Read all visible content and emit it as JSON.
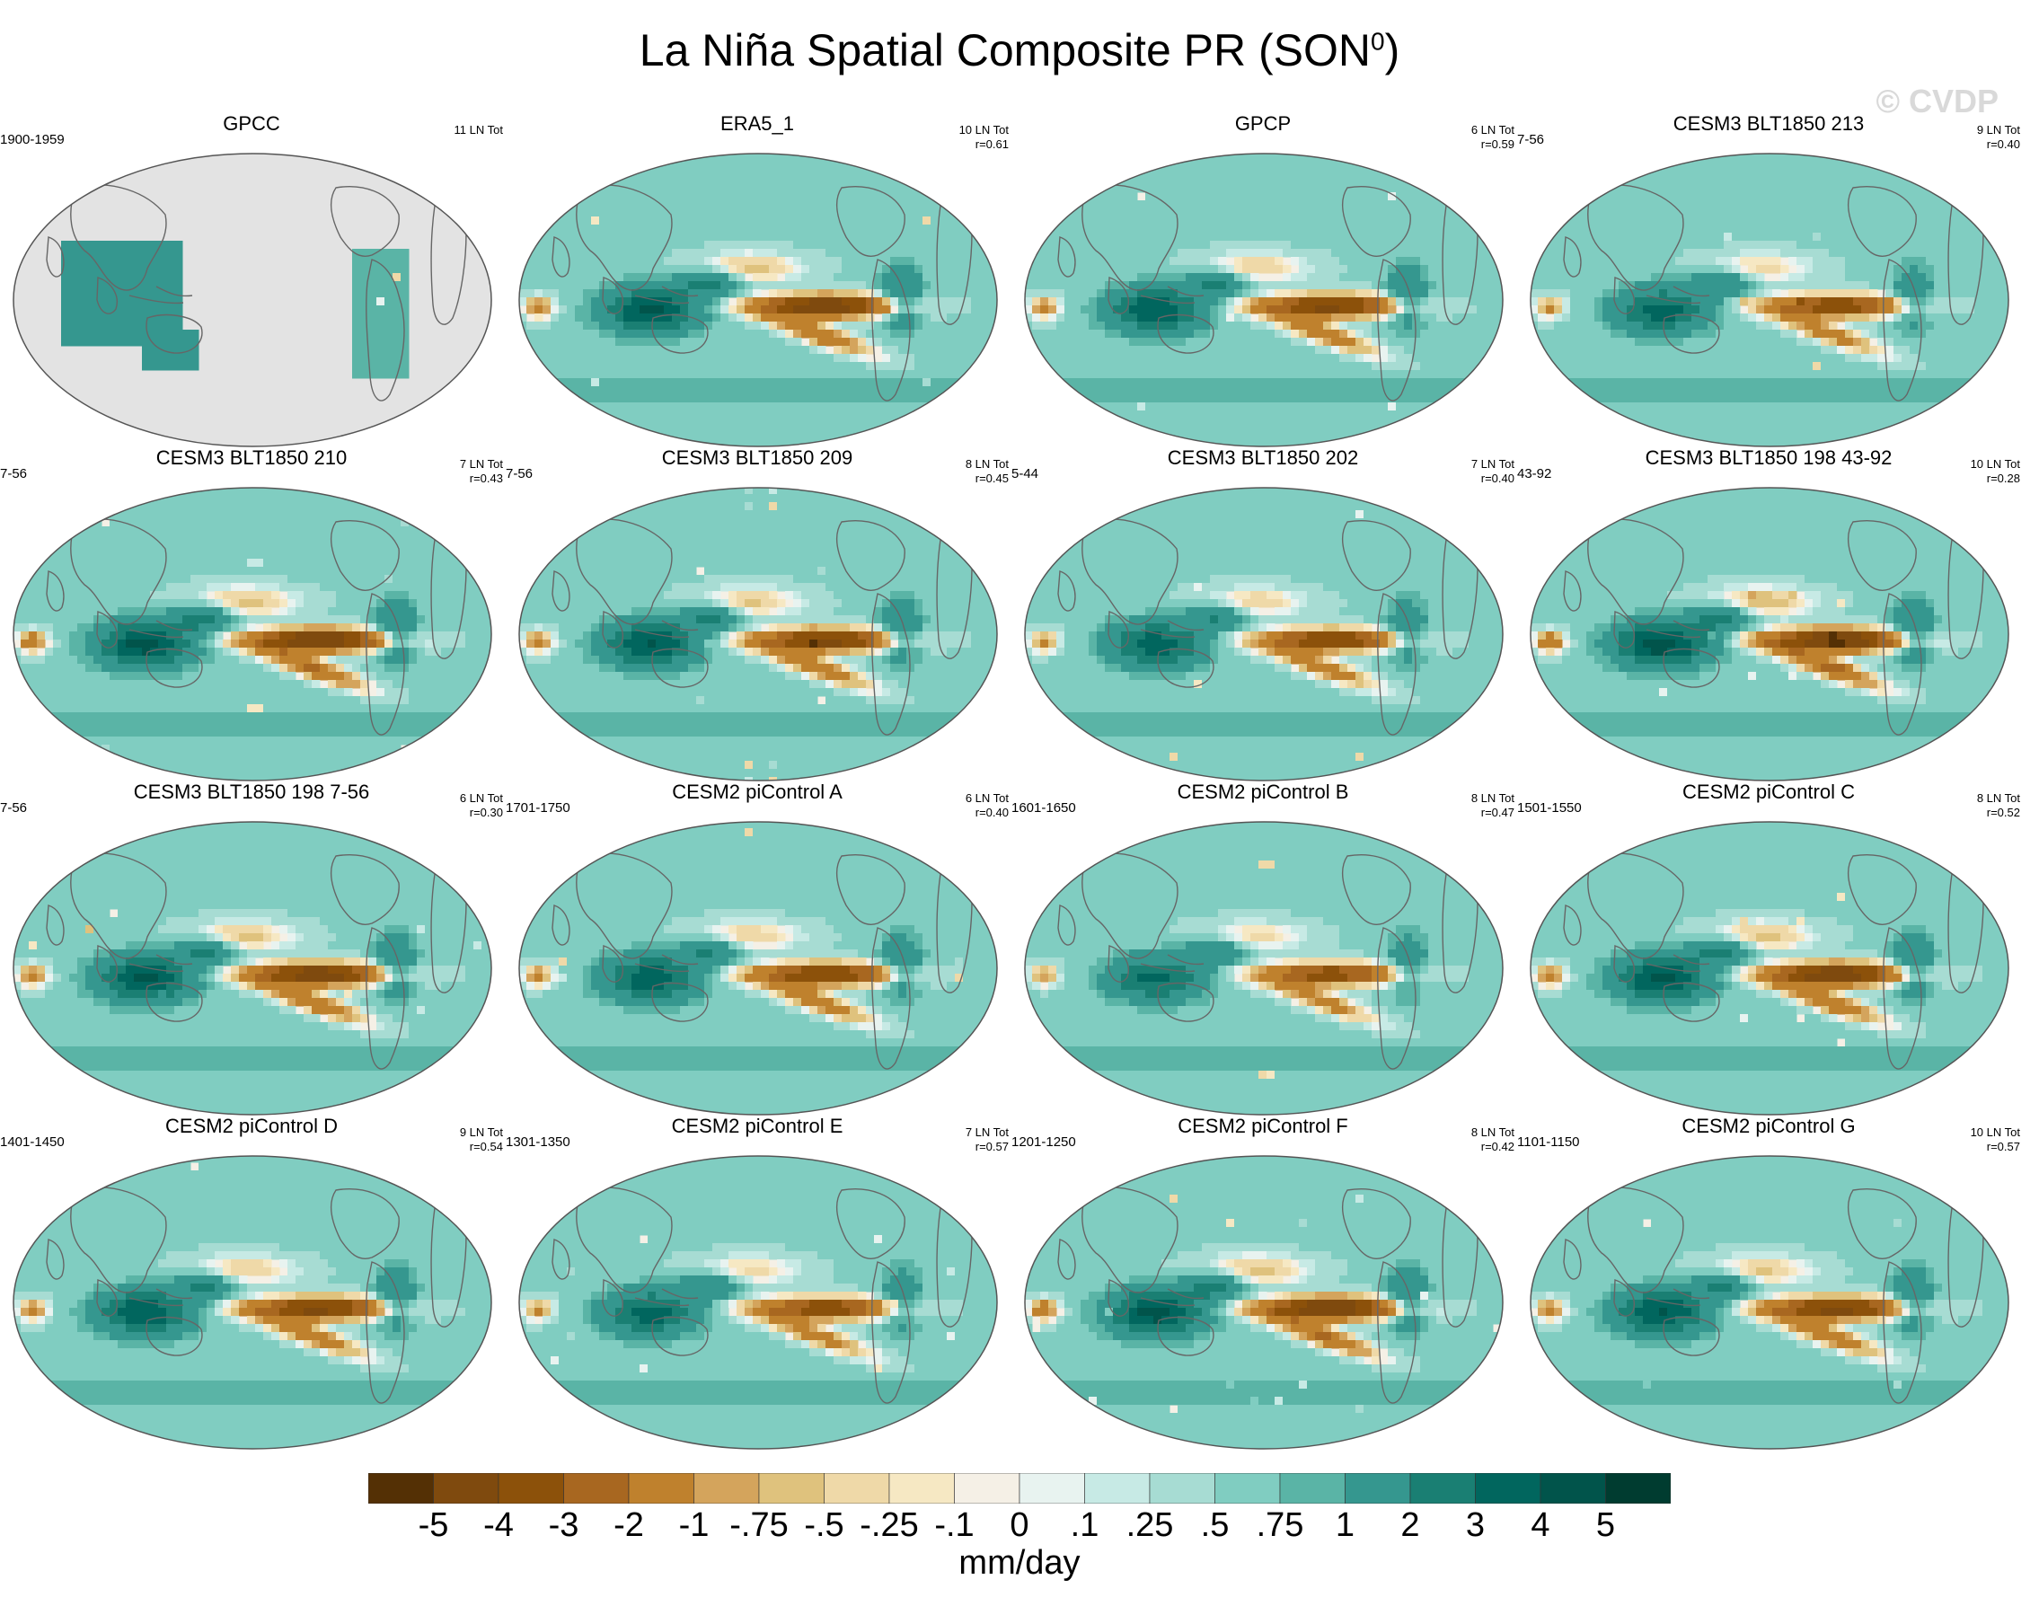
{
  "title": "La Niña Spatial Composite PR (SON",
  "title_superscript": "0",
  "title_suffix": ")",
  "watermark": "© CVDP",
  "chart_data": {
    "type": "heatmap",
    "variable": "PR",
    "season": "SON",
    "units": "mm/day",
    "colorbar": {
      "levels": [
        "-5",
        "-4",
        "-3",
        "-2",
        "-1",
        "-.75",
        "-.5",
        "-.25",
        "-.1",
        "0",
        ".1",
        ".25",
        ".5",
        ".75",
        "1",
        "2",
        "3",
        "4",
        "5"
      ],
      "colors": [
        "#543005",
        "#7f4a0e",
        "#8c510a",
        "#a86720",
        "#bf812d",
        "#d4a45c",
        "#dfc27d",
        "#efd9a8",
        "#f6e8c3",
        "#f5f0e6",
        "#e8f3f0",
        "#c7eae5",
        "#a7dcd3",
        "#80cdc1",
        "#5ab4a6",
        "#35978f",
        "#1a7f73",
        "#01665e",
        "#01544b",
        "#003c30"
      ]
    },
    "panels": [
      {
        "title": "GPCC",
        "period": "1900-1959",
        "events": "11 LN Tot",
        "r": "",
        "land_only": true
      },
      {
        "title": "ERA5_1",
        "period": "",
        "events": "10 LN Tot",
        "r": "r=0.61"
      },
      {
        "title": "GPCP",
        "period": "",
        "events": "6 LN Tot",
        "r": "r=0.59"
      },
      {
        "title": "CESM3 BLT1850 213",
        "period": "7-56",
        "events": "9 LN Tot",
        "r": "r=0.40"
      },
      {
        "title": "CESM3 BLT1850 210",
        "period": "7-56",
        "events": "7 LN Tot",
        "r": "r=0.43"
      },
      {
        "title": "CESM3 BLT1850 209",
        "period": "7-56",
        "events": "8 LN Tot",
        "r": "r=0.45"
      },
      {
        "title": "CESM3 BLT1850 202",
        "period": "5-44",
        "events": "7 LN Tot",
        "r": "r=0.40"
      },
      {
        "title": "CESM3 BLT1850 198 43-92",
        "period": "43-92",
        "events": "10 LN Tot",
        "r": "r=0.28"
      },
      {
        "title": "CESM3 BLT1850 198 7-56",
        "period": "7-56",
        "events": "6 LN Tot",
        "r": "r=0.30"
      },
      {
        "title": "CESM2 piControl A",
        "period": "1701-1750",
        "events": "6 LN Tot",
        "r": "r=0.40"
      },
      {
        "title": "CESM2 piControl B",
        "period": "1601-1650",
        "events": "8 LN Tot",
        "r": "r=0.47"
      },
      {
        "title": "CESM2 piControl C",
        "period": "1501-1550",
        "events": "8 LN Tot",
        "r": "r=0.52"
      },
      {
        "title": "CESM2 piControl D",
        "period": "1401-1450",
        "events": "9 LN Tot",
        "r": "r=0.54"
      },
      {
        "title": "CESM2 piControl E",
        "period": "1301-1350",
        "events": "7 LN Tot",
        "r": "r=0.57"
      },
      {
        "title": "CESM2 piControl F",
        "period": "1201-1250",
        "events": "8 LN Tot",
        "r": "r=0.42"
      },
      {
        "title": "CESM2 piControl G",
        "period": "1101-1150",
        "events": "10 LN Tot",
        "r": "r=0.57"
      }
    ]
  }
}
